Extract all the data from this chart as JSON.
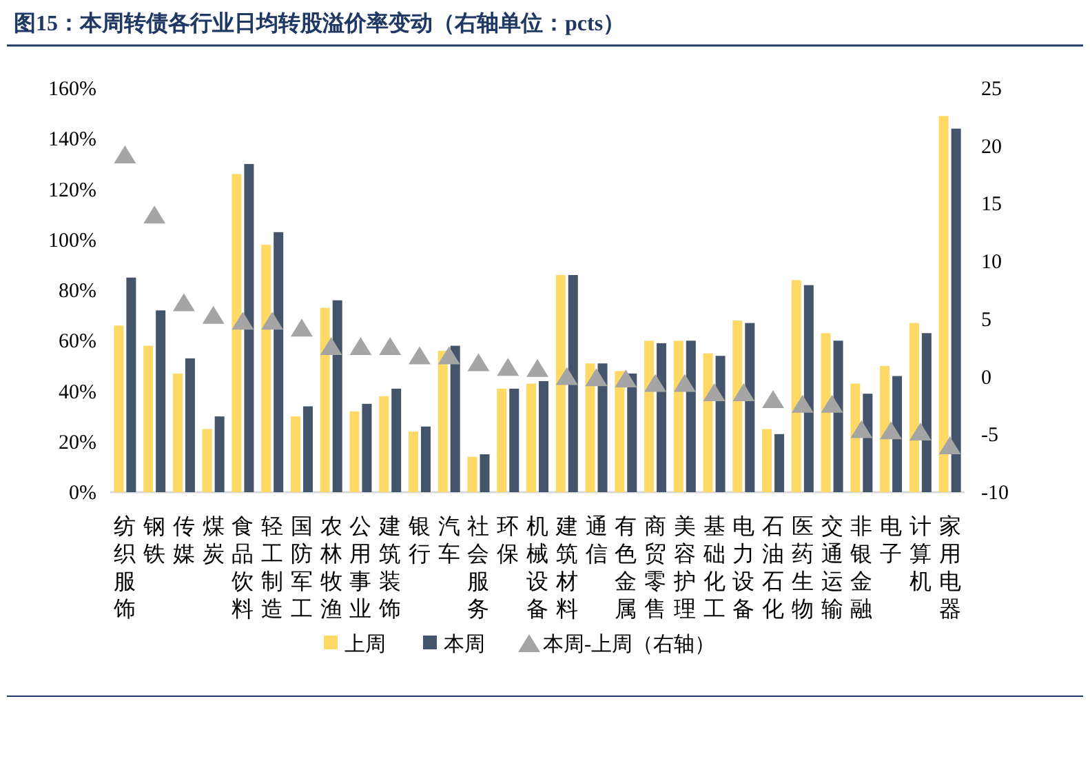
{
  "chart_data": {
    "type": "bar",
    "title": "图15：本周转债各行业日均转股溢价率变动（右轴单位：pcts）",
    "categories": [
      "纺织服饰",
      "钢铁",
      "传媒",
      "煤炭",
      "食品饮料",
      "轻工制造",
      "国防军工",
      "农林牧渔",
      "公用事业",
      "建筑装饰",
      "银行",
      "汽车",
      "社会服务",
      "环保",
      "机械设备",
      "建筑材料",
      "通信",
      "有色金属",
      "商贸零售",
      "美容护理",
      "基础化工",
      "电力设备",
      "石油石化",
      "医药生物",
      "交通运输",
      "非银金融",
      "电子",
      "计算机",
      "家用电器"
    ],
    "series": [
      {
        "name": "上周",
        "color": "#ffd966",
        "values": [
          66,
          58,
          47,
          25,
          126,
          98,
          30,
          73,
          32,
          38,
          24,
          56,
          14,
          41,
          43,
          86,
          51,
          48,
          60,
          60,
          55,
          68,
          25,
          84,
          63,
          43,
          50,
          67,
          149
        ]
      },
      {
        "name": "本周",
        "color": "#44546a",
        "values": [
          85,
          72,
          53,
          30,
          130,
          103,
          34,
          76,
          35,
          41,
          26,
          58,
          15,
          41,
          44,
          86,
          51,
          47,
          59,
          60,
          54,
          67,
          23,
          82,
          60,
          39,
          46,
          63,
          144
        ]
      },
      {
        "name": "本周-上周（右轴）",
        "type": "scatter",
        "axis": "y2",
        "marker": "triangle",
        "color": "#a5a5a5",
        "values": [
          19.2,
          14.0,
          6.4,
          5.3,
          4.8,
          4.8,
          4.2,
          2.6,
          2.6,
          2.6,
          1.8,
          1.8,
          1.2,
          0.8,
          0.7,
          0.0,
          -0.1,
          -0.2,
          -0.6,
          -0.6,
          -1.4,
          -1.4,
          -2.0,
          -2.4,
          -2.4,
          -4.6,
          -4.7,
          -4.8,
          -6.0
        ]
      }
    ],
    "ylim": [
      0,
      160
    ],
    "yticks": [
      {
        "value": 0,
        "label": "0%"
      },
      {
        "value": 20,
        "label": "20%"
      },
      {
        "value": 40,
        "label": "40%"
      },
      {
        "value": 60,
        "label": "60%"
      },
      {
        "value": 80,
        "label": "80%"
      },
      {
        "value": 100,
        "label": "100%"
      },
      {
        "value": 120,
        "label": "120%"
      },
      {
        "value": 140,
        "label": "140%"
      },
      {
        "value": 160,
        "label": "160%"
      }
    ],
    "y2lim": [
      -10,
      25
    ],
    "y2ticks": [
      -10,
      -5,
      0,
      5,
      10,
      15,
      20,
      25
    ],
    "legend": "bottom"
  }
}
